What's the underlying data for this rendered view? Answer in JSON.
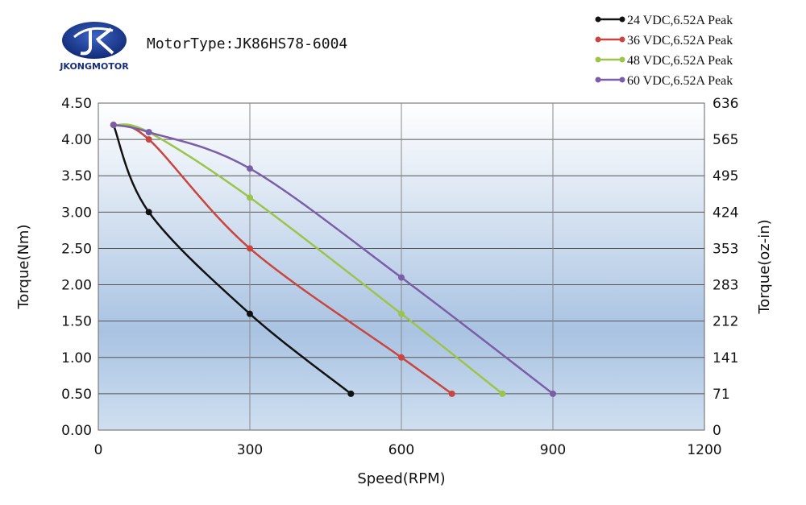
{
  "brand": {
    "name": "JKONGMOTOR",
    "logo_color": "#1a3a8f"
  },
  "header": {
    "motor_type": "MotorType:JK86HS78-6004"
  },
  "chart_data": {
    "type": "line",
    "xlabel": "Speed(RPM)",
    "ylabel": "Torque(Nm)",
    "y2label": "Torque(oz-in)",
    "xlim": [
      0,
      1200
    ],
    "ylim": [
      0,
      4.5
    ],
    "x_ticks": [
      "0",
      "300",
      "600",
      "900",
      "1200"
    ],
    "y_ticks": [
      "0.00",
      "0.50",
      "1.00",
      "1.50",
      "2.00",
      "2.50",
      "3.00",
      "3.50",
      "4.00",
      "4.50"
    ],
    "y2_ticks": [
      "0",
      "71",
      "141",
      "212",
      "283",
      "353",
      "424",
      "495",
      "565",
      "636"
    ],
    "grid": true,
    "legend_position": "top-right",
    "series": [
      {
        "name": "24 VDC,6.52A Peak",
        "color": "#111111",
        "points": [
          [
            30,
            4.2
          ],
          [
            100,
            3.0
          ],
          [
            300,
            1.6
          ],
          [
            500,
            0.5
          ]
        ]
      },
      {
        "name": "36 VDC,6.52A Peak",
        "color": "#c9453e",
        "points": [
          [
            30,
            4.2
          ],
          [
            100,
            4.0
          ],
          [
            300,
            2.5
          ],
          [
            600,
            1.0
          ],
          [
            700,
            0.5
          ]
        ]
      },
      {
        "name": "48 VDC,6.52A Peak",
        "color": "#9cc44a",
        "points": [
          [
            30,
            4.2
          ],
          [
            100,
            4.1
          ],
          [
            300,
            3.2
          ],
          [
            600,
            1.6
          ],
          [
            800,
            0.5
          ]
        ]
      },
      {
        "name": "60 VDC,6.52A Peak",
        "color": "#7b5ea7",
        "points": [
          [
            30,
            4.2
          ],
          [
            100,
            4.1
          ],
          [
            300,
            3.6
          ],
          [
            600,
            2.1
          ],
          [
            900,
            0.5
          ]
        ]
      }
    ]
  }
}
